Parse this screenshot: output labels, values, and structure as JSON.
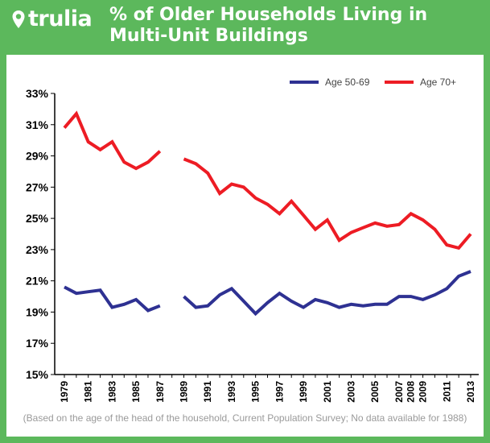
{
  "header": {
    "logo_text": "trulia",
    "title_line1": "% of Older Households Living in",
    "title_line2": "Multi-Unit Buildings"
  },
  "footnote": "(Based on the age of the head of the household, Current Population Survey; No data available for 1988)",
  "colors": {
    "brand": "#5cb85c",
    "series_50_69": "#2e3192",
    "series_70_plus": "#ed1c24"
  },
  "chart_data": {
    "type": "line",
    "title": "% of Older Households Living in Multi-Unit Buildings",
    "xlabel": "",
    "ylabel": "",
    "ylim": [
      15,
      33
    ],
    "yticks": [
      "15%",
      "17%",
      "19%",
      "21%",
      "23%",
      "25%",
      "27%",
      "29%",
      "31%",
      "33%"
    ],
    "xticks": [
      "1979",
      "1981",
      "1983",
      "1985",
      "1987",
      "1989",
      "1991",
      "1993",
      "1995",
      "1997",
      "1999",
      "2001",
      "2003",
      "2005",
      "2007",
      "2008",
      "2009",
      "2011",
      "2013"
    ],
    "legend_position": "top-right",
    "grid": false,
    "x": [
      1979,
      1980,
      1981,
      1982,
      1983,
      1984,
      1985,
      1986,
      1987,
      1989,
      1990,
      1991,
      1992,
      1993,
      1994,
      1995,
      1996,
      1997,
      1998,
      1999,
      2000,
      2001,
      2002,
      2003,
      2004,
      2005,
      2006,
      2007,
      2008,
      2009,
      2010,
      2011,
      2012,
      2013
    ],
    "gap_after": 1987,
    "series": [
      {
        "name": "Age 50-69",
        "color": "#2e3192",
        "values": [
          20.6,
          20.2,
          20.3,
          20.4,
          19.3,
          19.5,
          19.8,
          19.1,
          19.4,
          20.0,
          19.3,
          19.4,
          20.1,
          20.5,
          19.7,
          18.9,
          19.6,
          20.2,
          19.7,
          19.3,
          19.8,
          19.6,
          19.3,
          19.5,
          19.4,
          19.5,
          19.5,
          20.0,
          20.0,
          19.8,
          20.1,
          20.5,
          21.3,
          21.6
        ]
      },
      {
        "name": "Age 70+",
        "color": "#ed1c24",
        "values": [
          30.8,
          31.7,
          29.9,
          29.4,
          29.9,
          28.6,
          28.2,
          28.6,
          29.3,
          28.8,
          28.5,
          27.9,
          26.6,
          27.2,
          27.0,
          26.3,
          25.9,
          25.3,
          26.1,
          25.2,
          24.3,
          24.9,
          23.6,
          24.1,
          24.4,
          24.7,
          24.5,
          24.6,
          25.3,
          24.9,
          24.3,
          23.3,
          23.1,
          24.0
        ]
      }
    ]
  }
}
